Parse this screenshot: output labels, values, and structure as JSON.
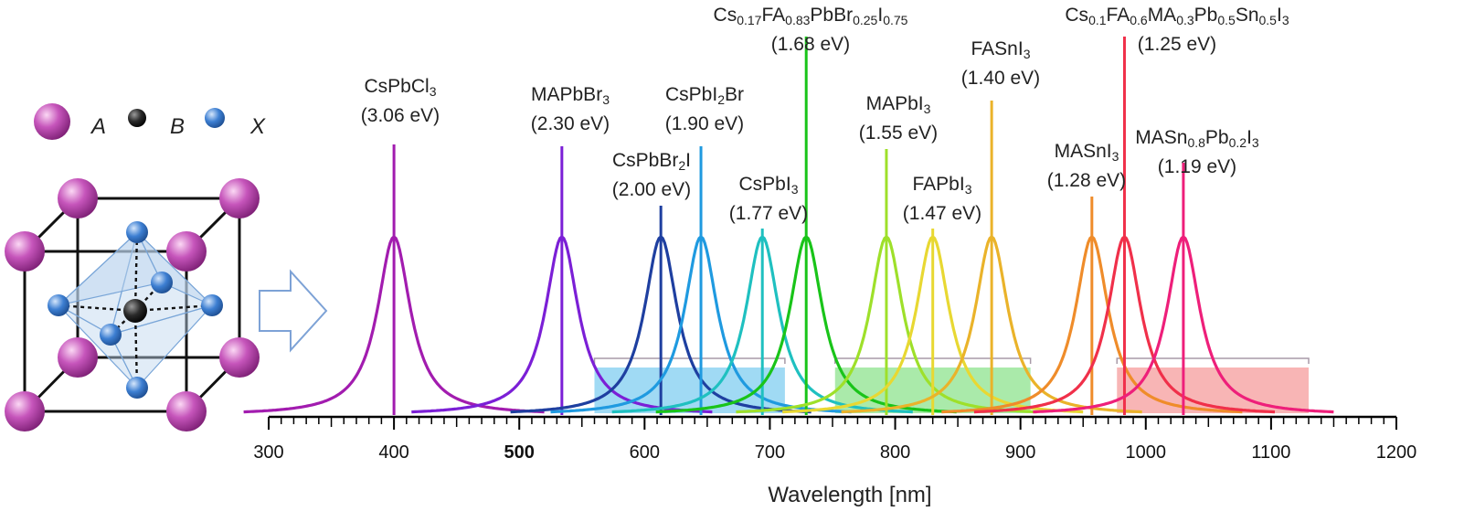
{
  "chart_data": {
    "type": "line",
    "xlabel": "Wavelength [nm]",
    "xlim": [
      300,
      1200
    ],
    "ticks": [
      300,
      400,
      500,
      600,
      700,
      800,
      900,
      1000,
      1100,
      1200
    ],
    "series": [
      {
        "name": "CsPbCl3",
        "label": [
          [
            "CsPbCl",
            ""
          ],
          [
            "3",
            "sub"
          ]
        ],
        "bandgap": "(3.06 eV)",
        "peak_nm": 400,
        "color": "#a21caf"
      },
      {
        "name": "MAPbBr3",
        "label": [
          [
            "MAPbBr",
            ""
          ],
          [
            "3",
            "sub"
          ]
        ],
        "bandgap": "(2.30 eV)",
        "peak_nm": 534,
        "color": "#7b1fd6"
      },
      {
        "name": "CsPbBr2I",
        "label": [
          [
            "CsPbBr",
            ""
          ],
          [
            "2",
            "sub"
          ],
          [
            "I",
            ""
          ]
        ],
        "bandgap": "(2.00 eV)",
        "peak_nm": 613,
        "color": "#1e3fa0"
      },
      {
        "name": "CsPbI2Br",
        "label": [
          [
            "CsPbI",
            ""
          ],
          [
            "2",
            "sub"
          ],
          [
            "Br",
            ""
          ]
        ],
        "bandgap": "(1.90 eV)",
        "peak_nm": 645,
        "color": "#1f9ae0"
      },
      {
        "name": "CsPbI3",
        "label": [
          [
            "CsPbI",
            ""
          ],
          [
            "3",
            "sub"
          ]
        ],
        "bandgap": "(1.77 eV)",
        "peak_nm": 694,
        "color": "#1fc0c0"
      },
      {
        "name": "Cs0.17FA0.83PbBr0.25I0.75",
        "label": [
          [
            "Cs",
            ""
          ],
          [
            "0.17",
            "sub"
          ],
          [
            "FA",
            ""
          ],
          [
            "0.83",
            "sub"
          ],
          [
            "PbBr",
            ""
          ],
          [
            "0.25",
            "sub"
          ],
          [
            "I",
            ""
          ],
          [
            "0.75",
            "sub"
          ]
        ],
        "bandgap": "(1.68 eV)",
        "peak_nm": 729,
        "color": "#19c419"
      },
      {
        "name": "MAPbI3",
        "label": [
          [
            "MAPbI",
            ""
          ],
          [
            "3",
            "sub"
          ]
        ],
        "bandgap": "(1.55 eV)",
        "peak_nm": 793,
        "color": "#9ee02a"
      },
      {
        "name": "FAPbI3",
        "label": [
          [
            "FAPbI",
            ""
          ],
          [
            "3",
            "sub"
          ]
        ],
        "bandgap": "(1.47 eV)",
        "peak_nm": 830,
        "color": "#e8d832"
      },
      {
        "name": "FASnI3",
        "label": [
          [
            "FASnI",
            ""
          ],
          [
            "3",
            "sub"
          ]
        ],
        "bandgap": "(1.40 eV)",
        "peak_nm": 877,
        "color": "#eab32a"
      },
      {
        "name": "MASnI3",
        "label": [
          [
            "MASnI",
            ""
          ],
          [
            "3",
            "sub"
          ]
        ],
        "bandgap": "(1.28 eV)",
        "peak_nm": 957,
        "color": "#ef8c2a"
      },
      {
        "name": "Cs0.1FA0.6MA0.3Pb0.5Sn0.5I3",
        "label": [
          [
            "Cs",
            ""
          ],
          [
            "0.1",
            "sub"
          ],
          [
            "FA",
            ""
          ],
          [
            "0.6",
            "sub"
          ],
          [
            "MA",
            ""
          ],
          [
            "0.3",
            "sub"
          ],
          [
            "Pb",
            ""
          ],
          [
            "0.5",
            "sub"
          ],
          [
            "Sn",
            ""
          ],
          [
            "0.5",
            "sub"
          ],
          [
            "I",
            ""
          ],
          [
            "3",
            "sub"
          ]
        ],
        "bandgap": "(1.25 eV)",
        "peak_nm": 983,
        "color": "#f0304a"
      },
      {
        "name": "MASn0.8Pb0.2I3",
        "label": [
          [
            "MASn",
            ""
          ],
          [
            "0.8",
            "sub"
          ],
          [
            "Pb",
            ""
          ],
          [
            "0.2",
            "sub"
          ],
          [
            "I",
            ""
          ],
          [
            "3",
            "sub"
          ]
        ],
        "bandgap": "(1.19 eV)",
        "peak_nm": 1030,
        "color": "#ee1f7a"
      }
    ],
    "shaded_ranges": [
      {
        "from_nm": 560,
        "to_nm": 712,
        "color": "#8fd4f2"
      },
      {
        "from_nm": 752,
        "to_nm": 908,
        "color": "#9be69b"
      },
      {
        "from_nm": 977,
        "to_nm": 1130,
        "color": "#f7a8a8"
      }
    ],
    "legend": [
      {
        "symbol": "A",
        "color": "#b0409f"
      },
      {
        "symbol": "B",
        "color": "#222222"
      },
      {
        "symbol": "X",
        "color": "#3f78c8"
      }
    ]
  },
  "colors": {
    "A": "#c05cb8",
    "B": "#1a1a1a",
    "X": "#4a86d0",
    "octahedron": "#bcd4ee",
    "arrow": "#7da2d6"
  },
  "icons": {
    "arrow": "right-arrow-icon",
    "structure": "perovskite-unit-cell-icon"
  }
}
